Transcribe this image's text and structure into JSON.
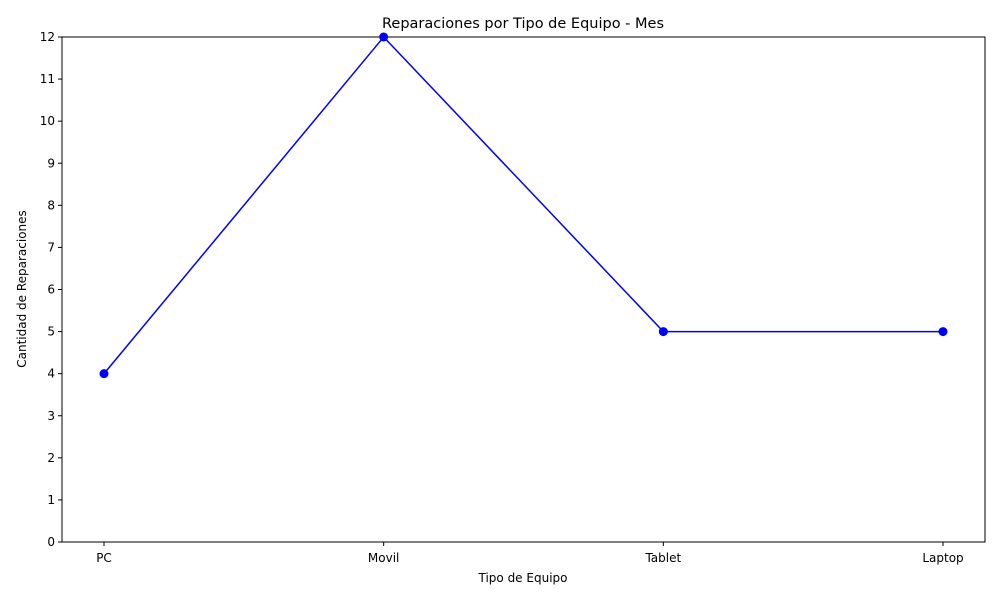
{
  "chart_data": {
    "type": "line",
    "title": "Reparaciones por Tipo de Equipo - Mes",
    "xlabel": "Tipo de Equipo",
    "ylabel": "Cantidad de Reparaciones",
    "categories": [
      "PC",
      "Movil",
      "Tablet",
      "Laptop"
    ],
    "series": [
      {
        "values": [
          4,
          12,
          5,
          5
        ],
        "color": "#0000ff",
        "marker": "circle"
      }
    ],
    "ylim": [
      0,
      12
    ],
    "yticks": [
      0,
      1,
      2,
      3,
      4,
      5,
      6,
      7,
      8,
      9,
      10,
      11,
      12
    ],
    "grid": false,
    "legend": "none"
  }
}
